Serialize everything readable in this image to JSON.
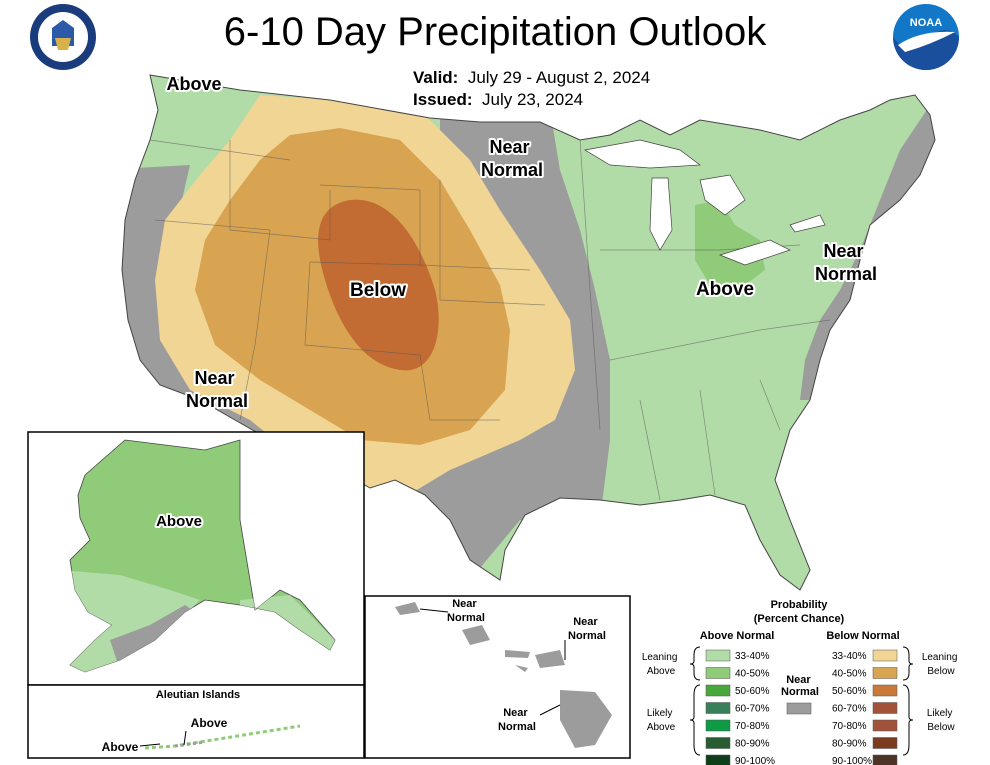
{
  "title": "6-10 Day Precipitation Outlook",
  "valid": {
    "label": "Valid:",
    "value": "July 29 - August 2, 2024"
  },
  "issued": {
    "label": "Issued:",
    "value": "July 23, 2024"
  },
  "logos": {
    "left": "us-department-of-commerce-seal",
    "right": "noaa-logo"
  },
  "colors": {
    "above_33_40": "#b2dca7",
    "above_40_50": "#8fcb78",
    "above_50_60": "#49a83c",
    "above_60_70": "#39805a",
    "above_70_80": "#0e9b45",
    "above_80_90": "#285d33",
    "above_90_100": "#0f3e1a",
    "near_normal": "#9c9c9c",
    "below_33_40": "#f1d594",
    "below_40_50": "#d9a451",
    "below_50_60": "#c97a38",
    "below_60_70": "#a4513a",
    "below_70_80": "#a0523a",
    "below_80_90": "#7b3b1f",
    "below_90_100": "#4e3427"
  },
  "map_labels": {
    "above_nw": "Above",
    "near_normal_north": "Near\nNormal",
    "below_center": "Below",
    "near_normal_sw": "Near\nNormal",
    "above_east": "Above",
    "near_normal_ne": "Near\nNormal",
    "alaska_above": "Above",
    "aleutian_title": "Aleutian Islands",
    "aleutian_above_1": "Above",
    "aleutian_above_2": "Above",
    "hawaii_nn_1": "Near\nNormal",
    "hawaii_nn_2": "Near\nNormal",
    "hawaii_nn_3": "Near\nNormal"
  },
  "legend": {
    "title_line1": "Probability",
    "title_line2": "(Percent Chance)",
    "above_header": "Above Normal",
    "below_header": "Below Normal",
    "near_label": "Near\nNormal",
    "leaning_above": "Leaning\nAbove",
    "likely_above": "Likely\nAbove",
    "leaning_below": "Leaning\nBelow",
    "likely_below": "Likely\nBelow",
    "above_rows": [
      "33-40%",
      "40-50%",
      "50-60%",
      "60-70%",
      "70-80%",
      "80-90%",
      "90-100%"
    ],
    "below_rows": [
      "33-40%",
      "40-50%",
      "50-60%",
      "60-70%",
      "70-80%",
      "80-90%",
      "90-100%"
    ]
  }
}
